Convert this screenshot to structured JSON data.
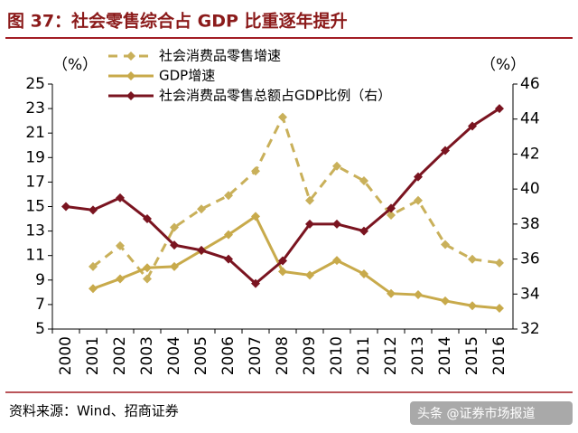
{
  "chart_data": {
    "type": "line",
    "title": "图 37：社会零售综合占 GDP 比重逐年提升",
    "source": "资料来源：Wind、招商证券",
    "watermark": "头条 @证券市场报道",
    "y_unit": "（%）",
    "y2_unit": "（%）",
    "categories": [
      "2000",
      "2001",
      "2002",
      "2003",
      "2004",
      "2005",
      "2006",
      "2007",
      "2008",
      "2009",
      "2010",
      "2011",
      "2012",
      "2013",
      "2014",
      "2015",
      "2016"
    ],
    "series": [
      {
        "name": "社会消费品零售增速",
        "color": "#c9b05a",
        "dashed": true,
        "marker": "diamond",
        "values": [
          null,
          10.1,
          11.8,
          9.1,
          13.3,
          14.8,
          15.9,
          17.9,
          22.3,
          15.5,
          18.3,
          17.1,
          14.3,
          15.5,
          11.9,
          10.7,
          10.4
        ]
      },
      {
        "name": "GDP增速",
        "color": "#c8aa4b",
        "dashed": false,
        "marker": "diamond",
        "values": [
          null,
          8.3,
          9.1,
          10.0,
          10.1,
          11.4,
          12.7,
          14.2,
          9.7,
          9.4,
          10.6,
          9.5,
          7.9,
          7.8,
          7.3,
          6.9,
          6.7
        ]
      },
      {
        "name": "社会消费品零售总额占GDP比例（右）",
        "color": "#7a1420",
        "dashed": false,
        "marker": "diamond",
        "axis": "y2",
        "values": [
          39.0,
          38.8,
          39.5,
          38.3,
          36.8,
          36.5,
          36.0,
          34.6,
          35.9,
          38.0,
          38.0,
          37.6,
          38.9,
          40.7,
          42.2,
          43.6,
          44.6
        ]
      }
    ],
    "ylim": [
      5,
      25
    ],
    "yticks": [
      5,
      7,
      9,
      11,
      13,
      15,
      17,
      19,
      21,
      23,
      25
    ],
    "y2lim": [
      32,
      46
    ],
    "y2ticks": [
      32,
      34,
      36,
      38,
      40,
      42,
      44,
      46
    ]
  }
}
